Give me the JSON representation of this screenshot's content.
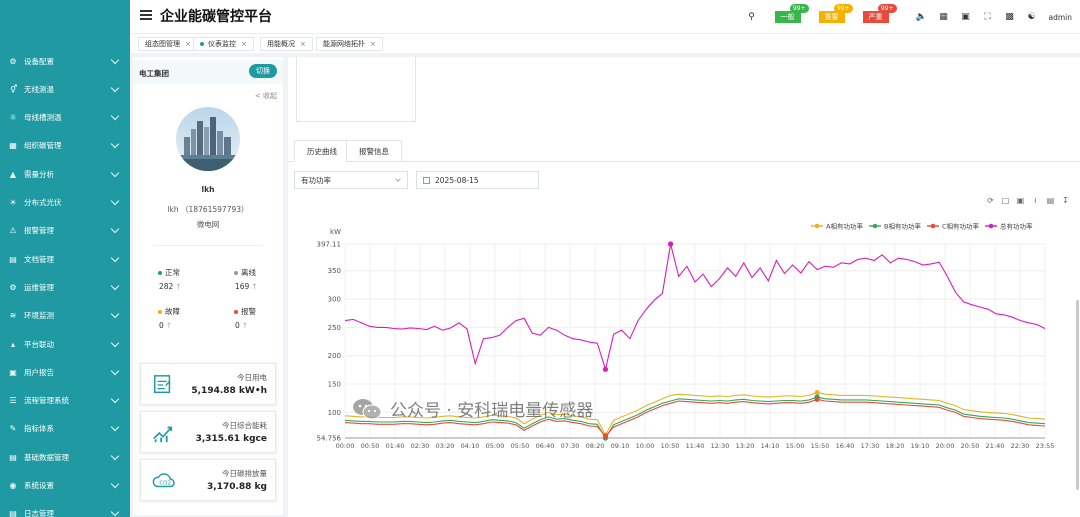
{
  "header": {
    "title": "企业能碳管控平台",
    "alarms": [
      {
        "label": "一般",
        "badge": "99+",
        "color": "#39b54a"
      },
      {
        "label": "重要",
        "badge": "99+",
        "color": "#f5b000"
      },
      {
        "label": "严重",
        "badge": "99+",
        "color": "#e84b3c"
      }
    ],
    "user": "admin",
    "icons": [
      "search-icon",
      "mute-icon",
      "grid-icon",
      "image-icon",
      "fullscreen-icon",
      "translate-icon",
      "shirt-icon"
    ]
  },
  "sidebar": {
    "items": [
      {
        "label": "设备配置",
        "icon": "device-icon"
      },
      {
        "label": "无线测温",
        "icon": "thermometer-icon"
      },
      {
        "label": "母线槽测温",
        "icon": "busbar-icon"
      },
      {
        "label": "组织碳管理",
        "icon": "org-icon"
      },
      {
        "label": "需量分析",
        "icon": "demand-icon"
      },
      {
        "label": "分布式光伏",
        "icon": "solar-icon"
      },
      {
        "label": "报警管理",
        "icon": "alarm-icon"
      },
      {
        "label": "文档管理",
        "icon": "document-icon"
      },
      {
        "label": "运维管理",
        "icon": "maintenance-icon"
      },
      {
        "label": "环境监测",
        "icon": "environment-icon"
      },
      {
        "label": "平台联动",
        "icon": "link-icon"
      },
      {
        "label": "用户报告",
        "icon": "report-icon"
      },
      {
        "label": "流程管理系统",
        "icon": "process-icon"
      },
      {
        "label": "指标体系",
        "icon": "index-icon"
      },
      {
        "label": "基础数据管理",
        "icon": "data-icon"
      },
      {
        "label": "系统设置",
        "icon": "settings-icon"
      },
      {
        "label": "日志管理",
        "icon": "log-icon"
      }
    ]
  },
  "tabs": [
    {
      "label": "组态图管理",
      "active": false
    },
    {
      "label": "仪表监控",
      "active": true
    },
    {
      "label": "用能概况",
      "active": false
    },
    {
      "label": "能源网络拓扑",
      "active": false
    }
  ],
  "left_panel": {
    "org": "电工集团",
    "switch_label": "切换",
    "collapse_label": "< 收起",
    "user_name": "lkh",
    "user_detail": "lkh （18761597793）",
    "user_dept": "微电网",
    "stats": [
      {
        "label": "正常",
        "value": "282",
        "color": "#1f9aa2"
      },
      {
        "label": "离线",
        "value": "169",
        "color": "#999999"
      },
      {
        "label": "故障",
        "value": "0",
        "color": "#f5b000"
      },
      {
        "label": "报警",
        "value": "0",
        "color": "#e84b3c"
      }
    ],
    "cards": [
      {
        "label": "今日用电",
        "value": "5,194.88 kW•h",
        "icon": "meter-icon"
      },
      {
        "label": "今日综合能耗",
        "value": "3,315.61 kgce",
        "icon": "trend-icon"
      },
      {
        "label": "今日碳排放量",
        "value": "3,170.88 kg",
        "icon": "co2-cloud-icon"
      }
    ]
  },
  "main": {
    "tabs": [
      "历史曲线",
      "报警信息"
    ],
    "metric_select": "有功功率",
    "date": "2025-08-15",
    "toolbox_icons": [
      "restore-icon",
      "zoom-icon",
      "zoom-reset-icon",
      "line-switch-icon",
      "bar-switch-icon",
      "download-icon"
    ]
  },
  "watermark": "公众号 · 安科瑞电量传感器",
  "chart_data": {
    "type": "line",
    "ylabel": "kW",
    "ylim": [
      54.756,
      397.11
    ],
    "yticks": [
      "397.11",
      "350",
      "300",
      "250",
      "200",
      "150",
      "100",
      "54.756"
    ],
    "xticks": [
      "00:00",
      "00:50",
      "01:40",
      "02:30",
      "03:20",
      "04:10",
      "05:00",
      "05:50",
      "06:40",
      "07:30",
      "08:20",
      "09:10",
      "10:00",
      "10:50",
      "11:40",
      "12:30",
      "13:20",
      "14:10",
      "15:00",
      "15:50",
      "16:40",
      "17:30",
      "18:20",
      "19:10",
      "20:00",
      "20:50",
      "21:40",
      "22:30",
      "23:55"
    ],
    "legend_position": "top-right",
    "series": [
      {
        "name": "A相有功功率",
        "color": "#e6b422",
        "values": [
          94,
          93,
          92,
          92,
          91,
          91,
          91,
          92,
          92,
          91,
          90,
          91,
          93,
          94,
          92,
          91,
          90,
          92,
          95,
          94,
          93,
          90,
          80,
          88,
          95,
          100,
          96,
          97,
          94,
          92,
          88,
          87,
          60,
          86,
          92,
          98,
          104,
          112,
          118,
          124,
          130,
          132,
          131,
          130,
          129,
          128,
          129,
          128,
          130,
          131,
          129,
          128,
          127,
          128,
          129,
          129,
          128,
          130,
          135,
          132,
          131,
          130,
          130,
          130,
          130,
          129,
          128,
          127,
          126,
          125,
          124,
          123,
          122,
          121,
          116,
          112,
          105,
          103,
          101,
          100,
          99,
          98,
          96,
          93,
          90,
          89,
          88
        ]
      },
      {
        "name": "B相有功功率",
        "color": "#2eaa5c",
        "values": [
          86,
          85,
          84,
          84,
          83,
          83,
          83,
          84,
          84,
          83,
          82,
          83,
          85,
          86,
          84,
          83,
          82,
          84,
          87,
          86,
          85,
          82,
          72,
          80,
          87,
          92,
          88,
          89,
          86,
          84,
          80,
          79,
          54.756,
          78,
          84,
          90,
          96,
          104,
          110,
          116,
          120,
          124,
          123,
          122,
          121,
          120,
          121,
          120,
          122,
          123,
          121,
          120,
          119,
          120,
          121,
          121,
          120,
          122,
          127,
          124,
          123,
          122,
          122,
          122,
          122,
          121,
          120,
          119,
          118,
          117,
          116,
          115,
          114,
          113,
          108,
          104,
          97,
          95,
          93,
          92,
          91,
          90,
          88,
          85,
          82,
          81,
          80
        ]
      },
      {
        "name": "C相有功功率",
        "color": "#e84b3c",
        "values": [
          82,
          81,
          80,
          80,
          79,
          79,
          79,
          80,
          80,
          79,
          78,
          79,
          81,
          82,
          80,
          79,
          78,
          80,
          83,
          82,
          81,
          78,
          68,
          76,
          83,
          88,
          84,
          85,
          82,
          80,
          76,
          75,
          58,
          74,
          80,
          86,
          92,
          100,
          106,
          112,
          116,
          120,
          119,
          118,
          117,
          116,
          117,
          116,
          118,
          119,
          117,
          116,
          115,
          116,
          117,
          117,
          116,
          118,
          123,
          120,
          119,
          118,
          118,
          118,
          118,
          117,
          116,
          115,
          114,
          113,
          112,
          111,
          110,
          109,
          104,
          100,
          93,
          91,
          89,
          88,
          87,
          86,
          84,
          81,
          78,
          77,
          76
        ]
      },
      {
        "name": "总有功功率",
        "color": "#d81eb8",
        "values": [
          262,
          264,
          258,
          252,
          250,
          250,
          248,
          247,
          249,
          248,
          246,
          252,
          245,
          249,
          258,
          247,
          186,
          230,
          232,
          236,
          250,
          262,
          266,
          240,
          236,
          250,
          245,
          236,
          230,
          228,
          224,
          222,
          176,
          238,
          245,
          230,
          262,
          282,
          298,
          310,
          397.11,
          340,
          358,
          330,
          344,
          322,
          336,
          355,
          340,
          364,
          338,
          355,
          332,
          368,
          345,
          360,
          346,
          366,
          352,
          358,
          356,
          364,
          362,
          370,
          372,
          368,
          378,
          364,
          372,
          370,
          366,
          360,
          362,
          365,
          340,
          312,
          295,
          290,
          286,
          282,
          274,
          272,
          268,
          262,
          258,
          255,
          248
        ]
      }
    ]
  }
}
